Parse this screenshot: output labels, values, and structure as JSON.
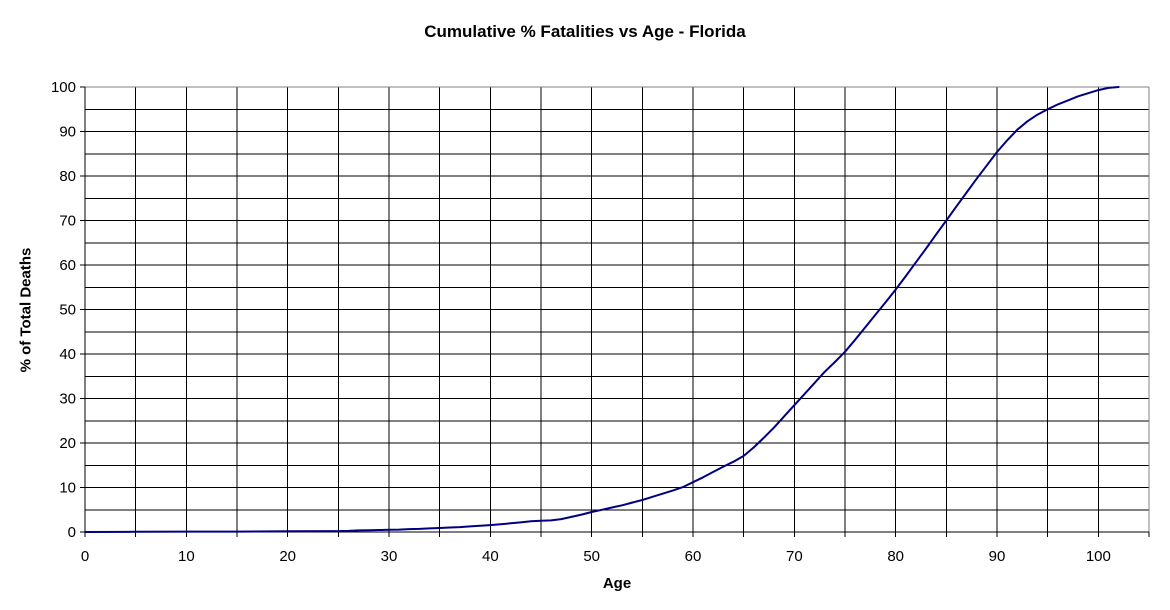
{
  "chart_data": {
    "type": "line",
    "title": "Cumulative % Fatalities vs Age - Florida",
    "xlabel": "Age",
    "ylabel": "% of Total Deaths",
    "xlim": [
      0,
      105
    ],
    "ylim": [
      0,
      100
    ],
    "x_tick_labels": [
      0,
      10,
      20,
      30,
      40,
      50,
      60,
      70,
      80,
      90,
      100
    ],
    "y_tick_labels": [
      0,
      10,
      20,
      30,
      40,
      50,
      60,
      70,
      80,
      90,
      100
    ],
    "x_grid_step": 5,
    "y_grid_step": 5,
    "grid": true,
    "legend": "none",
    "colors": {
      "line": "#000080",
      "grid": "#000000",
      "plot_border": "#808080",
      "background": "#ffffff",
      "text": "#000000"
    },
    "series": [
      {
        "x": [
          0,
          5,
          10,
          15,
          20,
          25,
          26,
          27,
          28,
          29,
          30,
          31,
          32,
          33,
          34,
          35,
          36,
          37,
          38,
          39,
          40,
          41,
          42,
          43,
          44,
          45,
          46,
          47,
          48,
          49,
          50,
          51,
          52,
          53,
          54,
          55,
          56,
          57,
          58,
          59,
          60,
          61,
          62,
          63,
          64,
          65,
          66,
          67,
          68,
          69,
          70,
          71,
          72,
          73,
          74,
          75,
          76,
          77,
          78,
          79,
          80,
          81,
          82,
          83,
          84,
          85,
          86,
          87,
          88,
          89,
          90,
          91,
          92,
          93,
          94,
          95,
          96,
          97,
          98,
          99,
          100,
          101,
          102
        ],
        "y": [
          0,
          0.05,
          0.1,
          0.1,
          0.15,
          0.2,
          0.25,
          0.35,
          0.4,
          0.45,
          0.5,
          0.55,
          0.65,
          0.7,
          0.8,
          0.9,
          1.0,
          1.1,
          1.25,
          1.4,
          1.55,
          1.75,
          1.95,
          2.15,
          2.4,
          2.55,
          2.6,
          2.9,
          3.4,
          3.9,
          4.5,
          5.0,
          5.5,
          6.0,
          6.6,
          7.2,
          7.9,
          8.6,
          9.3,
          10.1,
          11.2,
          12.3,
          13.5,
          14.7,
          15.8,
          17.1,
          19.0,
          21.2,
          23.5,
          26.0,
          28.5,
          31.0,
          33.5,
          36.0,
          38.2,
          40.5,
          43.2,
          46.0,
          48.8,
          51.6,
          54.5,
          57.5,
          60.6,
          63.7,
          66.9,
          70.0,
          73.2,
          76.3,
          79.4,
          82.4,
          85.4,
          88.0,
          90.4,
          92.3,
          93.8,
          95.0,
          96.1,
          97.0,
          97.9,
          98.6,
          99.3,
          99.8,
          100.0
        ]
      }
    ]
  }
}
